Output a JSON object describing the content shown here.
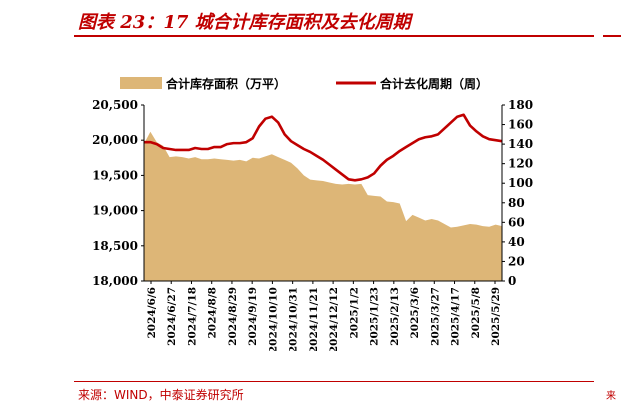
{
  "header": {
    "title": "图表 23：17 城合计库存面积及去化周期"
  },
  "footer": {
    "source": "来源：WIND，中泰证券研究所",
    "edge_mark": "来"
  },
  "colors": {
    "accent": "#c00000",
    "area": "#ddb677",
    "line": "#c00000"
  },
  "chart_data": {
    "type": "area",
    "legend": [
      {
        "name": "合计库存面积（万平）",
        "kind": "area"
      },
      {
        "name": "合计去化周期（周）",
        "kind": "line"
      }
    ],
    "legend_position": "top",
    "grid": false,
    "x_ticks": [
      "2024/6/6",
      "2024/6/27",
      "2024/7/18",
      "2024/8/8",
      "2024/8/29",
      "2024/9/19",
      "2024/10/10",
      "2024/10/31",
      "2024/11/21",
      "2024/12/12",
      "2025/1/2",
      "2025/1/23",
      "2025/2/13",
      "2025/3/6",
      "2025/3/27",
      "2025/4/17",
      "2025/5/8",
      "2025/5/29"
    ],
    "y_left": {
      "min": 18000,
      "max": 20500,
      "ticks": [
        "18,000",
        "18,500",
        "19,000",
        "19,500",
        "20,000",
        "20,500"
      ]
    },
    "y_right": {
      "min": 0,
      "max": 180,
      "ticks": [
        "0",
        "20",
        "40",
        "60",
        "80",
        "100",
        "120",
        "140",
        "160",
        "180"
      ]
    },
    "series": [
      {
        "name": "合计库存面积（万平）",
        "axis": "left",
        "values": [
          19950,
          20120,
          19970,
          19920,
          19760,
          19770,
          19760,
          19740,
          19760,
          19730,
          19730,
          19740,
          19730,
          19720,
          19710,
          19720,
          19700,
          19750,
          19740,
          19770,
          19800,
          19760,
          19720,
          19680,
          19600,
          19500,
          19440,
          19430,
          19420,
          19400,
          19380,
          19370,
          19380,
          19370,
          19380,
          19220,
          19210,
          19200,
          19130,
          19120,
          19100,
          18850,
          18940,
          18900,
          18860,
          18880,
          18860,
          18810,
          18760,
          18770,
          18790,
          18810,
          18800,
          18780,
          18770,
          18800,
          18780
        ]
      },
      {
        "name": "合计去化周期（周）",
        "axis": "right",
        "values": [
          142,
          142,
          140,
          136,
          135,
          134,
          134,
          134,
          136,
          135,
          135,
          137,
          137,
          140,
          141,
          141,
          142,
          146,
          158,
          166,
          168,
          162,
          150,
          143,
          139,
          135,
          132,
          128,
          124,
          119,
          114,
          109,
          104,
          103,
          104,
          106,
          110,
          118,
          124,
          128,
          133,
          137,
          141,
          145,
          147,
          148,
          150,
          156,
          162,
          168,
          170,
          159,
          153,
          148,
          145,
          144,
          143
        ]
      }
    ]
  }
}
